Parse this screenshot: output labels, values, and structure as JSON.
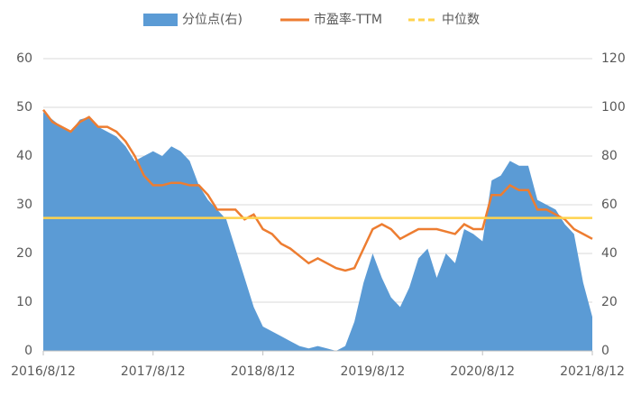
{
  "chart_data": {
    "type": "dual-axis-area-line",
    "categories": [
      "2016/8/12",
      null,
      null,
      null,
      null,
      null,
      null,
      null,
      null,
      null,
      null,
      null,
      "2017/8/12",
      null,
      null,
      null,
      null,
      null,
      null,
      null,
      null,
      null,
      null,
      null,
      "2018/8/12",
      null,
      null,
      null,
      null,
      null,
      null,
      null,
      null,
      null,
      null,
      null,
      "2019/8/12",
      null,
      null,
      null,
      null,
      null,
      null,
      null,
      null,
      null,
      null,
      null,
      "2020/8/12",
      null,
      null,
      null,
      null,
      null,
      null,
      null,
      null,
      null,
      null,
      null,
      "2021/8/12"
    ],
    "series": [
      {
        "name": "分位点(右)",
        "kind": "area",
        "axis": "y2",
        "color": "#5b9bd5",
        "values": [
          98,
          95,
          92,
          90,
          95,
          96,
          92,
          90,
          88,
          84,
          78,
          80,
          82,
          80,
          84,
          82,
          78,
          68,
          62,
          58,
          54,
          42,
          30,
          18,
          10,
          8,
          6,
          4,
          2,
          1,
          2,
          1,
          0,
          2,
          12,
          28,
          40,
          30,
          22,
          18,
          26,
          38,
          42,
          30,
          40,
          36,
          50,
          48,
          45,
          70,
          72,
          78,
          76,
          76,
          62,
          60,
          58,
          52,
          48,
          28,
          14
        ]
      },
      {
        "name": "市盈率-TTM",
        "kind": "line",
        "color": "#ed7d31",
        "values": [
          49.5,
          47,
          46,
          45,
          47,
          48,
          46,
          46,
          45,
          43,
          40,
          36,
          34,
          34,
          34.5,
          34.5,
          34,
          34,
          32,
          29,
          29,
          29,
          27,
          28,
          25,
          24,
          22,
          21,
          19.5,
          18,
          19,
          18,
          17,
          16.5,
          17,
          21,
          25,
          26,
          25,
          23,
          24,
          25,
          25,
          25,
          24.5,
          24,
          26,
          25,
          25,
          32,
          32,
          34,
          33,
          33,
          29,
          29,
          28,
          27,
          25,
          24,
          23
        ]
      },
      {
        "name": "中位数",
        "kind": "dashed",
        "color": "#ffd34d",
        "values": [
          27.3,
          27.3,
          27.3,
          27.3,
          27.3,
          27.3,
          27.3,
          27.3,
          27.3,
          27.3,
          27.3,
          27.3,
          27.3,
          27.3,
          27.3,
          27.3,
          27.3,
          27.3,
          27.3,
          27.3,
          27.3,
          27.3,
          27.3,
          27.3,
          27.3,
          27.3,
          27.3,
          27.3,
          27.3,
          27.3,
          27.3,
          27.3,
          27.3,
          27.3,
          27.3,
          27.3,
          27.3,
          27.3,
          27.3,
          27.3,
          27.3,
          27.3,
          27.3,
          27.3,
          27.3,
          27.3,
          27.3,
          27.3,
          27.3,
          27.3,
          27.3,
          27.3,
          27.3,
          27.3,
          27.3,
          27.3,
          27.3,
          27.3,
          27.3,
          27.3,
          27.3
        ]
      }
    ],
    "ylim": [
      0,
      60
    ],
    "yticks": [
      0,
      10,
      20,
      30,
      40,
      50,
      60
    ],
    "y2lim": [
      0,
      120
    ],
    "y2ticks": [
      0,
      20,
      40,
      60,
      80,
      100,
      120
    ],
    "grid": true,
    "legend": "top"
  }
}
